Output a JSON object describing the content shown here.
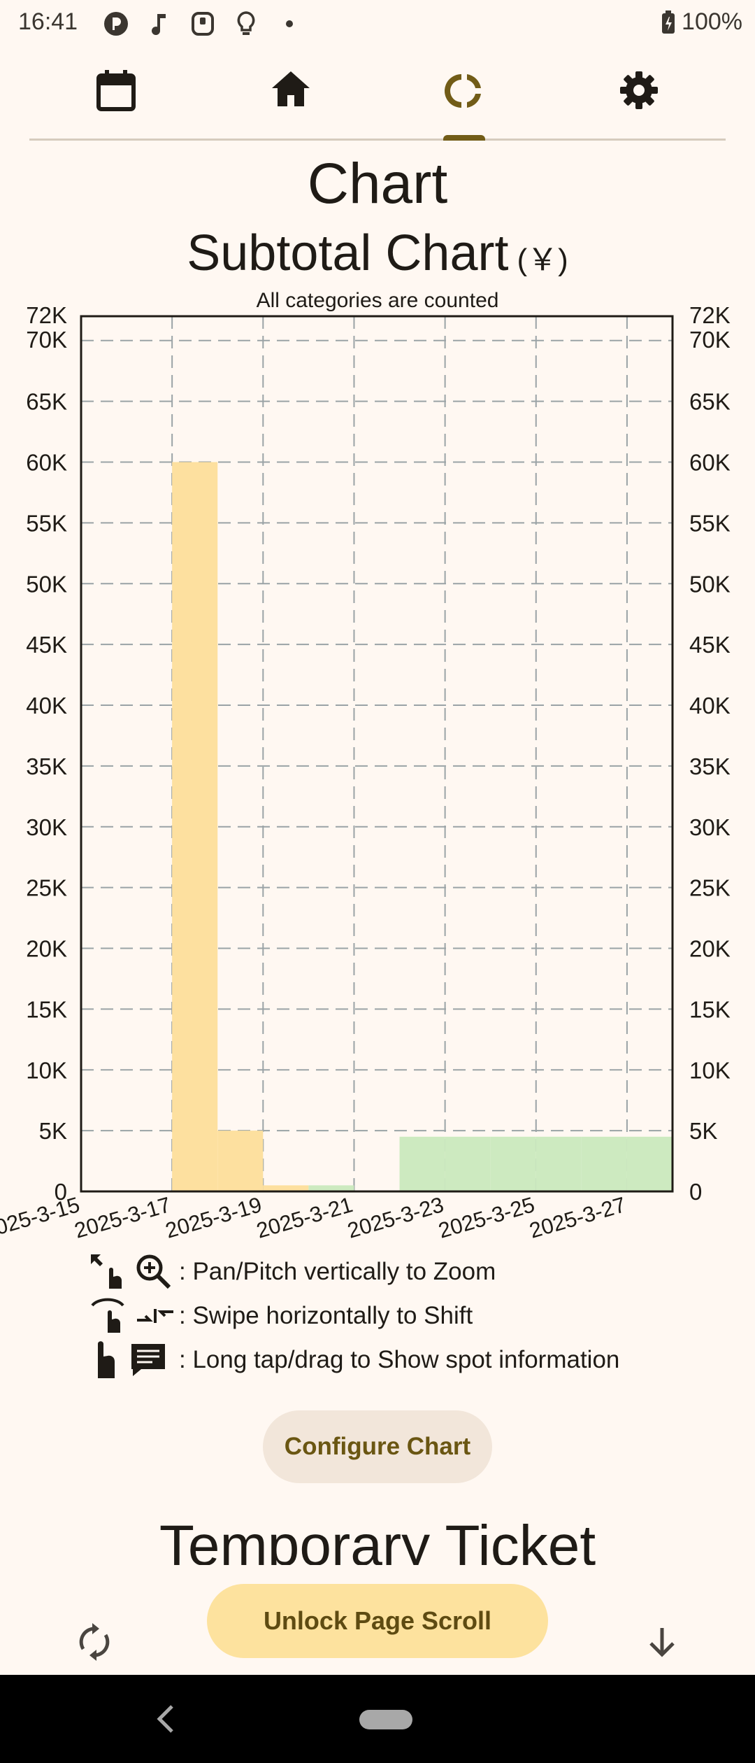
{
  "status_bar": {
    "time": "16:41",
    "icons": [
      "app-logo-icon",
      "music-note-icon",
      "game-controller-icon",
      "lightbulb-icon",
      "dot-icon"
    ],
    "battery_percent": "100%"
  },
  "nav_tabs": [
    {
      "name": "calendar",
      "icon": "calendar-icon"
    },
    {
      "name": "home",
      "icon": "home-icon"
    },
    {
      "name": "chart",
      "icon": "donut-chart-icon",
      "selected": true
    },
    {
      "name": "settings",
      "icon": "gear-icon"
    }
  ],
  "page_title": "Chart",
  "chart_title": "Subtotal Chart",
  "chart_unit": "(￥)",
  "chart_subtitle": "All categories are counted",
  "chart_data": {
    "type": "bar",
    "title": "Subtotal Chart",
    "y_axis_ticks": [
      "0",
      "5K",
      "10K",
      "15K",
      "20K",
      "25K",
      "30K",
      "35K",
      "40K",
      "45K",
      "50K",
      "55K",
      "60K",
      "65K",
      "70K",
      "72K"
    ],
    "x_axis_ticks": [
      "2025-3-15",
      "2025-3-17",
      "2025-3-19",
      "2025-3-21",
      "2025-3-23",
      "2025-3-25",
      "2025-3-27"
    ],
    "ylim": [
      0,
      72000
    ],
    "xlim": [
      "2025-03-15",
      "2025-03-28"
    ],
    "grid": true,
    "colors": {
      "series_a": "#fde09f",
      "series_b": "#cdeac0"
    },
    "bars": [
      {
        "date": "2025-03-17",
        "value": 60000,
        "color": "series_a"
      },
      {
        "date": "2025-03-18",
        "value": 5000,
        "color": "series_a"
      },
      {
        "date": "2025-03-19",
        "value": 500,
        "color": "series_a"
      },
      {
        "date": "2025-03-20",
        "value": 500,
        "color": "series_b"
      },
      {
        "date": "2025-03-20",
        "value": 150,
        "color": "series_b"
      },
      {
        "date": "2025-03-22",
        "value": 4500,
        "color": "series_b"
      },
      {
        "date": "2025-03-23",
        "value": 4500,
        "color": "series_b"
      },
      {
        "date": "2025-03-24",
        "value": 4500,
        "color": "series_b"
      },
      {
        "date": "2025-03-25",
        "value": 4500,
        "color": "series_b"
      },
      {
        "date": "2025-03-26",
        "value": 4500,
        "color": "series_b"
      },
      {
        "date": "2025-03-27",
        "value": 4500,
        "color": "series_b"
      }
    ]
  },
  "hints": [
    {
      "icons": [
        "expand-arrows-icon",
        "zoom-in-icon"
      ],
      "text": ": Pan/Pitch vertically to Zoom"
    },
    {
      "icons": [
        "swipe-hand-icon",
        "arrows-horizontal-icon"
      ],
      "text": ": Swipe horizontally to Shift"
    },
    {
      "icons": [
        "tap-hand-icon",
        "speech-bubble-icon"
      ],
      "text": ": Long tap/drag to Show spot information"
    }
  ],
  "configure_button": "Configure Chart",
  "section_title": "Temporary Ticket",
  "bottom_bar": {
    "refresh_icon": "refresh-icon",
    "unlock_button": "Unlock Page Scroll",
    "down_icon": "arrow-down-icon"
  },
  "system_nav": {
    "back_icon": "back-icon",
    "home_icon": "home-pill-icon"
  }
}
